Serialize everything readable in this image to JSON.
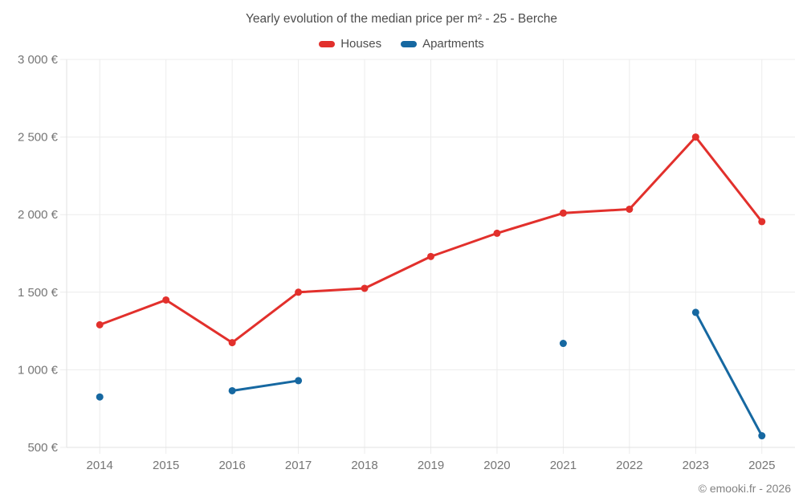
{
  "page": {
    "footer": "© emooki.fr - 2026"
  },
  "theme": {
    "grid_color": "#ececec",
    "axis_line_color": "#e2e2e2",
    "axis_label_color": "#757575",
    "title_color": "#4d4d4d",
    "footer_color": "#828282",
    "houses_color": "#e2302c",
    "apartments_color": "#1668a1"
  },
  "legend": {
    "items": [
      {
        "label": "Houses",
        "color": "#e2302c"
      },
      {
        "label": "Apartments",
        "color": "#1668a1"
      }
    ]
  },
  "chart_data": {
    "type": "line",
    "title": "Yearly evolution of the median price per m² - 25 - Berche",
    "categories": [
      "2014",
      "2015",
      "2016",
      "2017",
      "2018",
      "2019",
      "2020",
      "2021",
      "2022",
      "2023",
      "2025"
    ],
    "series": [
      {
        "name": "Houses",
        "color": "#e2302c",
        "values": [
          1290,
          1450,
          1175,
          1500,
          1525,
          1730,
          1880,
          2010,
          2035,
          2500,
          1955
        ]
      },
      {
        "name": "Apartments",
        "color": "#1668a1",
        "values": [
          825,
          null,
          865,
          930,
          null,
          null,
          null,
          1170,
          null,
          1370,
          575
        ]
      }
    ],
    "xlabel": "",
    "ylabel": "",
    "ylim": [
      500,
      3000
    ],
    "yticks": [
      {
        "value": 500,
        "label": "500 €"
      },
      {
        "value": 1000,
        "label": "1 000 €"
      },
      {
        "value": 1500,
        "label": "1 500 €"
      },
      {
        "value": 2000,
        "label": "2 000 €"
      },
      {
        "value": 2500,
        "label": "2 500 €"
      },
      {
        "value": 3000,
        "label": "3 000 €"
      }
    ],
    "grid": true,
    "legend_position": "top"
  }
}
